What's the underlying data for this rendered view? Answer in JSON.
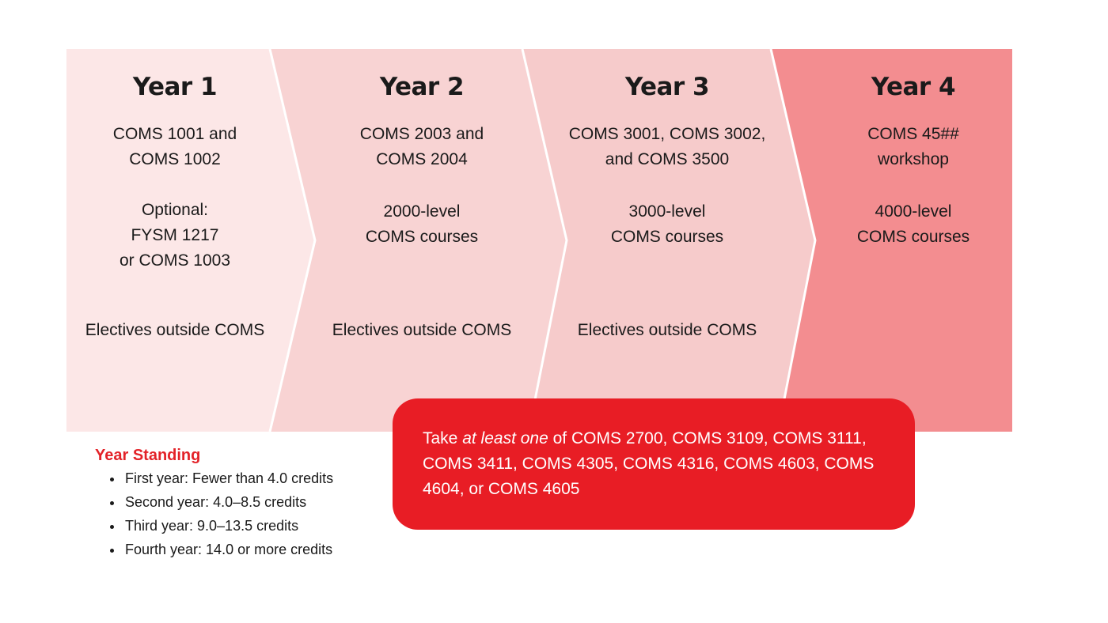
{
  "colors": {
    "year1_fill": "#fce7e7",
    "year2_fill": "#f8d3d3",
    "year3_fill": "#f6cbcb",
    "year4_fill": "#f38d90",
    "callout_fill": "#e81d25",
    "standing_heading": "#e32228"
  },
  "years": [
    {
      "title": "Year 1",
      "core": [
        "COMS 1001 and",
        "COMS 1002"
      ],
      "optional": [
        "Optional:",
        "FYSM 1217",
        "or COMS 1003"
      ],
      "electives": "Electives outside COMS"
    },
    {
      "title": "Year 2",
      "core": [
        "COMS 2003 and",
        "COMS 2004"
      ],
      "level": [
        "2000-level",
        "COMS courses"
      ],
      "electives": "Electives outside COMS"
    },
    {
      "title": "Year 3",
      "core": [
        "COMS 3001, COMS 3002,",
        "and COMS 3500"
      ],
      "level": [
        "3000-level",
        "COMS courses"
      ],
      "electives": "Electives outside COMS"
    },
    {
      "title": "Year 4",
      "core": [
        "COMS 45##",
        "workshop"
      ],
      "level": [
        "4000-level",
        "COMS courses"
      ]
    }
  ],
  "callout": {
    "prefix": "Take ",
    "emphasis": "at least one",
    "line1_rest": " of COMS 2700, COMS 3109, COMS 3111,",
    "line2": "COMS 3411, COMS 4305, COMS 4316, COMS 4603, COMS",
    "line3": "4604, or COMS 4605"
  },
  "year_standing": {
    "heading": "Year Standing",
    "items": [
      "First year: Fewer than 4.0 credits",
      "Second year: 4.0–8.5 credits",
      "Third year: 9.0–13.5 credits",
      "Fourth year: 14.0 or more credits"
    ]
  }
}
